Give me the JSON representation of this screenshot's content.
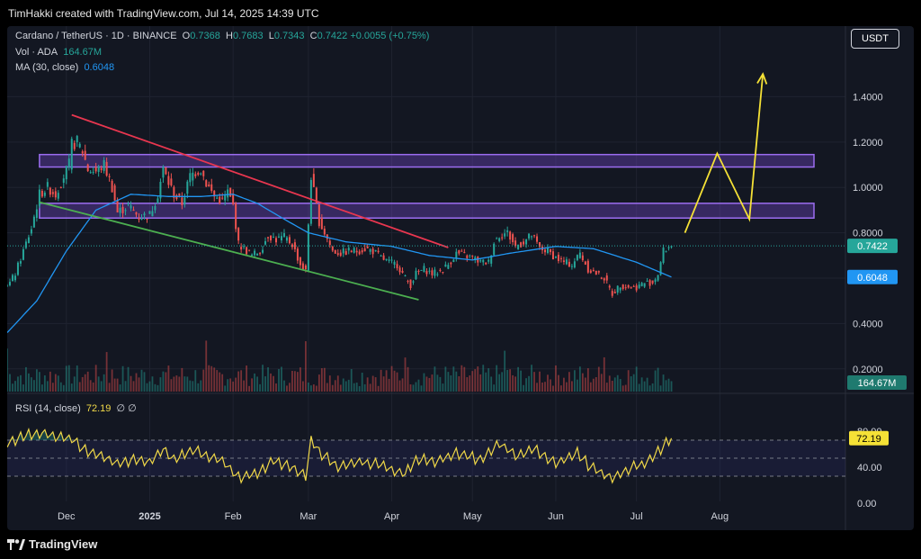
{
  "header": {
    "credit": "TimHakki created with TradingView.com, Jul 14, 2025 14:39 UTC"
  },
  "legend": {
    "symbol": "Cardano / TetherUS · 1D · BINANCE",
    "o_label": "O",
    "o_value": "0.7368",
    "h_label": "H",
    "h_value": "0.7683",
    "l_label": "L",
    "l_value": "0.7343",
    "c_label": "C",
    "c_value": "0.7422",
    "change": "+0.0055 (+0.75%)",
    "vol_label": "Vol · ADA",
    "vol_value": "164.67M",
    "ma_label": "MA (30, close)",
    "ma_value": "0.6048",
    "rsi_label": "RSI (14, close)",
    "rsi_value": "72.19",
    "rsi_extra": "∅  ∅"
  },
  "currency_button": "USDT",
  "footer": {
    "brand": "TradingView"
  },
  "colors": {
    "up": "#26a69a",
    "down": "#ef5350",
    "ma": "#2196f3",
    "rsi": "#f0d848",
    "zone": "#7b4bd6",
    "resistance": "#e8364f",
    "support": "#4caf50",
    "projection": "#f5e136",
    "background": "#131722"
  },
  "chart_data": {
    "type": "candlestick",
    "title": "Cardano / TetherUS · 1D · BINANCE",
    "price_axis": {
      "ticks": [
        "1.4000",
        "1.2000",
        "1.0000",
        "0.8000",
        "0.6000",
        "0.4000",
        "0.2000"
      ],
      "tick_values": [
        1.4,
        1.2,
        1.0,
        0.8,
        0.6,
        0.4,
        0.2
      ],
      "ylim": [
        0.1,
        1.62
      ]
    },
    "time_axis": {
      "labels": [
        "Dec",
        "2025",
        "Feb",
        "Mar",
        "Apr",
        "May",
        "Jun",
        "Jul",
        "Aug"
      ],
      "dates": [
        "2024-12-01",
        "2025-01-01",
        "2025-02-01",
        "2025-03-01",
        "2025-04-01",
        "2025-05-01",
        "2025-06-01",
        "2025-07-01",
        "2025-08-01"
      ],
      "xlim": [
        "2024-11-09",
        "2025-09-10"
      ]
    },
    "price_keypoints": [
      [
        "2024-11-09",
        0.56
      ],
      [
        "2024-11-12",
        0.62
      ],
      [
        "2024-11-15",
        0.72
      ],
      [
        "2024-11-18",
        0.82
      ],
      [
        "2024-11-21",
        0.97
      ],
      [
        "2024-11-24",
        1.0
      ],
      [
        "2024-11-27",
        0.97
      ],
      [
        "2024-11-30",
        1.05
      ],
      [
        "2024-12-02",
        1.1
      ],
      [
        "2024-12-03",
        1.19
      ],
      [
        "2024-12-05",
        1.2
      ],
      [
        "2024-12-07",
        1.16
      ],
      [
        "2024-12-09",
        1.08
      ],
      [
        "2024-12-12",
        1.07
      ],
      [
        "2024-12-15",
        1.1
      ],
      [
        "2024-12-18",
        1.0
      ],
      [
        "2024-12-20",
        0.89
      ],
      [
        "2024-12-24",
        0.92
      ],
      [
        "2024-12-28",
        0.87
      ],
      [
        "2025-01-01",
        0.88
      ],
      [
        "2025-01-04",
        0.97
      ],
      [
        "2025-01-06",
        1.08
      ],
      [
        "2025-01-08",
        1.02
      ],
      [
        "2025-01-10",
        0.97
      ],
      [
        "2025-01-13",
        0.93
      ],
      [
        "2025-01-16",
        1.05
      ],
      [
        "2025-01-18",
        1.07
      ],
      [
        "2025-01-20",
        1.08
      ],
      [
        "2025-01-22",
        1.02
      ],
      [
        "2025-01-25",
        0.96
      ],
      [
        "2025-01-28",
        0.94
      ],
      [
        "2025-01-30",
        0.98
      ],
      [
        "2025-02-01",
        0.92
      ],
      [
        "2025-02-03",
        0.75
      ],
      [
        "2025-02-05",
        0.73
      ],
      [
        "2025-02-08",
        0.7
      ],
      [
        "2025-02-11",
        0.72
      ],
      [
        "2025-02-14",
        0.79
      ],
      [
        "2025-02-17",
        0.77
      ],
      [
        "2025-02-20",
        0.78
      ],
      [
        "2025-02-23",
        0.75
      ],
      [
        "2025-02-26",
        0.66
      ],
      [
        "2025-02-28",
        0.63
      ],
      [
        "2025-03-02",
        1.05
      ],
      [
        "2025-03-03",
        0.98
      ],
      [
        "2025-03-05",
        0.85
      ],
      [
        "2025-03-07",
        0.8
      ],
      [
        "2025-03-10",
        0.72
      ],
      [
        "2025-03-13",
        0.71
      ],
      [
        "2025-03-16",
        0.72
      ],
      [
        "2025-03-19",
        0.72
      ],
      [
        "2025-03-22",
        0.73
      ],
      [
        "2025-03-25",
        0.72
      ],
      [
        "2025-03-28",
        0.69
      ],
      [
        "2025-03-31",
        0.67
      ],
      [
        "2025-04-03",
        0.66
      ],
      [
        "2025-04-06",
        0.6
      ],
      [
        "2025-04-08",
        0.57
      ],
      [
        "2025-04-10",
        0.62
      ],
      [
        "2025-04-13",
        0.64
      ],
      [
        "2025-04-16",
        0.62
      ],
      [
        "2025-04-19",
        0.63
      ],
      [
        "2025-04-22",
        0.66
      ],
      [
        "2025-04-25",
        0.71
      ],
      [
        "2025-04-28",
        0.7
      ],
      [
        "2025-05-01",
        0.69
      ],
      [
        "2025-05-04",
        0.67
      ],
      [
        "2025-05-07",
        0.67
      ],
      [
        "2025-05-09",
        0.76
      ],
      [
        "2025-05-11",
        0.79
      ],
      [
        "2025-05-14",
        0.8
      ],
      [
        "2025-05-17",
        0.74
      ],
      [
        "2025-05-20",
        0.76
      ],
      [
        "2025-05-23",
        0.79
      ],
      [
        "2025-05-26",
        0.73
      ],
      [
        "2025-05-29",
        0.72
      ],
      [
        "2025-06-01",
        0.69
      ],
      [
        "2025-06-04",
        0.67
      ],
      [
        "2025-06-07",
        0.66
      ],
      [
        "2025-06-10",
        0.71
      ],
      [
        "2025-06-13",
        0.64
      ],
      [
        "2025-06-16",
        0.62
      ],
      [
        "2025-06-19",
        0.6
      ],
      [
        "2025-06-22",
        0.53
      ],
      [
        "2025-06-25",
        0.57
      ],
      [
        "2025-06-28",
        0.56
      ],
      [
        "2025-07-01",
        0.56
      ],
      [
        "2025-07-04",
        0.58
      ],
      [
        "2025-07-07",
        0.58
      ],
      [
        "2025-07-09",
        0.62
      ],
      [
        "2025-07-11",
        0.72
      ],
      [
        "2025-07-13",
        0.7368
      ],
      [
        "2025-07-14",
        0.7422
      ]
    ],
    "last_candle": {
      "open": 0.7368,
      "high": 0.7683,
      "low": 0.7343,
      "close": 0.7422
    },
    "ma30_keypoints": [
      [
        "2024-11-09",
        0.36
      ],
      [
        "2024-11-20",
        0.5
      ],
      [
        "2024-12-01",
        0.72
      ],
      [
        "2024-12-12",
        0.9
      ],
      [
        "2024-12-25",
        0.97
      ],
      [
        "2025-01-08",
        0.96
      ],
      [
        "2025-01-20",
        0.96
      ],
      [
        "2025-02-01",
        0.97
      ],
      [
        "2025-02-10",
        0.93
      ],
      [
        "2025-02-20",
        0.86
      ],
      [
        "2025-03-01",
        0.8
      ],
      [
        "2025-03-15",
        0.76
      ],
      [
        "2025-04-01",
        0.74
      ],
      [
        "2025-04-15",
        0.7
      ],
      [
        "2025-05-01",
        0.68
      ],
      [
        "2025-05-15",
        0.71
      ],
      [
        "2025-06-01",
        0.74
      ],
      [
        "2025-06-15",
        0.73
      ],
      [
        "2025-07-01",
        0.67
      ],
      [
        "2025-07-14",
        0.6048
      ]
    ],
    "volume_label": "164.67M",
    "zones": [
      {
        "from": 1.09,
        "to": 1.145
      },
      {
        "from": 0.865,
        "to": 0.93
      }
    ],
    "resistance_line": [
      [
        "2024-12-03",
        1.32
      ],
      [
        "2025-04-22",
        0.735
      ]
    ],
    "support_line": [
      [
        "2024-11-21",
        0.935
      ],
      [
        "2025-04-11",
        0.505
      ]
    ],
    "projection": [
      [
        "2025-07-19",
        0.8
      ],
      [
        "2025-07-31",
        1.15
      ],
      [
        "2025-08-12",
        0.86
      ],
      [
        "2025-08-17",
        1.5
      ]
    ],
    "price_badges": [
      {
        "value": 0.7422,
        "text": "0.7422"
      },
      {
        "value": 0.6048,
        "text": "0.6048"
      }
    ],
    "rsi": {
      "label": "RSI (14, close)",
      "value": 72.19,
      "ticks": [
        "80.00",
        "40.00",
        "0.00"
      ],
      "tick_values": [
        80,
        40,
        0
      ],
      "band": [
        30,
        70
      ],
      "keypoints": [
        [
          "2024-11-09",
          67
        ],
        [
          "2024-11-15",
          74
        ],
        [
          "2024-11-22",
          78
        ],
        [
          "2024-11-28",
          73
        ],
        [
          "2024-12-03",
          72
        ],
        [
          "2024-12-08",
          58
        ],
        [
          "2024-12-14",
          53
        ],
        [
          "2024-12-20",
          44
        ],
        [
          "2024-12-26",
          49
        ],
        [
          "2025-01-01",
          46
        ],
        [
          "2025-01-06",
          60
        ],
        [
          "2025-01-10",
          47
        ],
        [
          "2025-01-17",
          60
        ],
        [
          "2025-01-22",
          52
        ],
        [
          "2025-01-28",
          47
        ],
        [
          "2025-02-03",
          28
        ],
        [
          "2025-02-10",
          33
        ],
        [
          "2025-02-16",
          47
        ],
        [
          "2025-02-23",
          40
        ],
        [
          "2025-02-28",
          30
        ],
        [
          "2025-03-02",
          70
        ],
        [
          "2025-03-06",
          55
        ],
        [
          "2025-03-12",
          40
        ],
        [
          "2025-03-20",
          46
        ],
        [
          "2025-03-28",
          42
        ],
        [
          "2025-04-06",
          32
        ],
        [
          "2025-04-10",
          48
        ],
        [
          "2025-04-18",
          47
        ],
        [
          "2025-04-25",
          56
        ],
        [
          "2025-05-04",
          48
        ],
        [
          "2025-05-11",
          66
        ],
        [
          "2025-05-18",
          52
        ],
        [
          "2025-05-24",
          60
        ],
        [
          "2025-06-01",
          44
        ],
        [
          "2025-06-09",
          55
        ],
        [
          "2025-06-14",
          40
        ],
        [
          "2025-06-22",
          28
        ],
        [
          "2025-06-28",
          38
        ],
        [
          "2025-07-04",
          44
        ],
        [
          "2025-07-09",
          57
        ],
        [
          "2025-07-14",
          72.19
        ]
      ]
    }
  }
}
